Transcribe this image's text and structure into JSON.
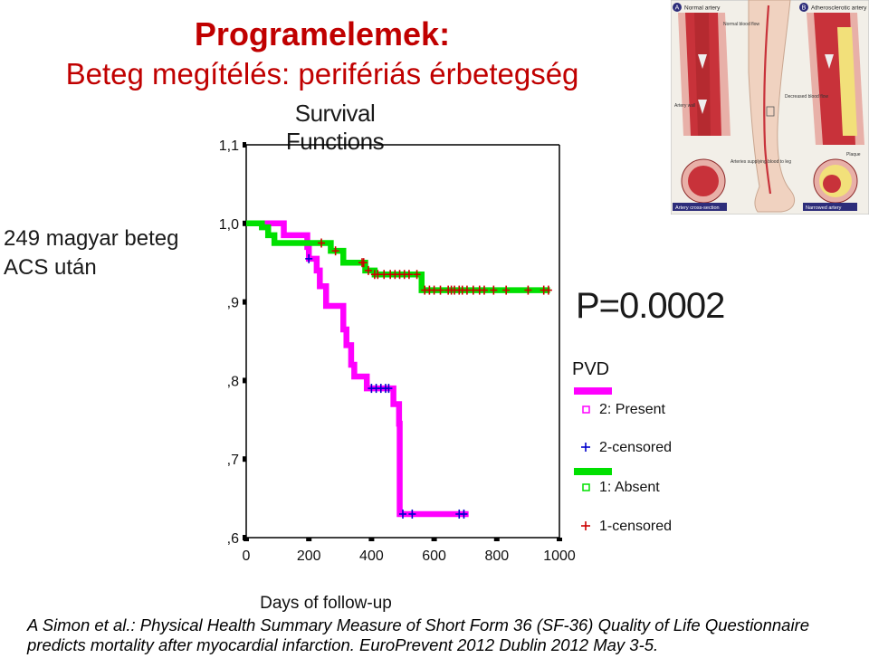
{
  "slide": {
    "title_line1": "Programelemek:",
    "title_line2": "Beteg megítélés: perifériás érbetegség",
    "side_note": [
      "249 magyar beteg",
      "ACS után"
    ],
    "p_value": "P=0.0002",
    "citation": [
      "A Simon et al.: Physical Health Summary Measure of Short Form 36 (SF-36) Quality of Life Questionnaire",
      "predicts mortality after myocardial infarction. EuroPrevent 2012 Dublin 2012 May 3-5."
    ],
    "colors": {
      "title": "#c00000",
      "present": "#ff00ff",
      "absent": "#00e000",
      "censored_present": "#0000cc",
      "censored_absent": "#cc0000"
    }
  },
  "illustration": {
    "panel_a_label": "A",
    "panel_a_title": "Normal artery",
    "panel_b_label": "B",
    "panel_b_title": "Atherosclerotic artery",
    "labels": {
      "normal_flow": "Normal blood flow",
      "artery_wall": "Artery wall",
      "arteries_supplying": "Arteries supplying blood to leg",
      "decreased_flow": "Decreased blood flow",
      "plaque": "Plaque",
      "artery_cross": "Artery cross-section",
      "narrowed": "Narrowed artery"
    }
  },
  "chart_data": {
    "type": "line",
    "title": "Survival Functions",
    "xlabel": "Days of follow-up",
    "ylabel": "",
    "xlim": [
      0,
      1000
    ],
    "ylim": [
      0.6,
      1.1
    ],
    "x_ticks": [
      "0",
      "200",
      "400",
      "600",
      "800",
      "1000"
    ],
    "x_tick_values": [
      0,
      200,
      400,
      600,
      800,
      1000
    ],
    "y_ticks": [
      "1,1",
      "1,0",
      ",9",
      ",8",
      ",7",
      ",6"
    ],
    "y_tick_values": [
      1.1,
      1.0,
      0.9,
      0.8,
      0.7,
      0.6
    ],
    "legend_title": "PVD",
    "legend_position": "right",
    "legend": [
      "2: Present",
      "2-censored",
      "1: Absent",
      "1-censored"
    ],
    "series": [
      {
        "name": "2: Present",
        "steps": [
          [
            60,
            1.0
          ],
          [
            120,
            0.985
          ],
          [
            195,
            0.97
          ],
          [
            200,
            0.955
          ],
          [
            225,
            0.94
          ],
          [
            235,
            0.92
          ],
          [
            255,
            0.895
          ],
          [
            310,
            0.865
          ],
          [
            320,
            0.845
          ],
          [
            335,
            0.82
          ],
          [
            345,
            0.805
          ],
          [
            385,
            0.79
          ],
          [
            470,
            0.77
          ],
          [
            488,
            0.745
          ],
          [
            490,
            0.63
          ]
        ],
        "end_x": 710,
        "censored_x": [
          200,
          400,
          415,
          430,
          445,
          455,
          500,
          530,
          680,
          695
        ]
      },
      {
        "name": "1: Absent",
        "steps": [
          [
            50,
            0.995
          ],
          [
            70,
            0.985
          ],
          [
            90,
            0.975
          ],
          [
            270,
            0.965
          ],
          [
            310,
            0.95
          ],
          [
            380,
            0.94
          ],
          [
            410,
            0.935
          ],
          [
            560,
            0.915
          ]
        ],
        "end_x": 970,
        "censored_x": [
          240,
          285,
          370,
          375,
          390,
          410,
          420,
          440,
          460,
          475,
          490,
          505,
          520,
          545,
          570,
          585,
          600,
          620,
          645,
          655,
          665,
          680,
          690,
          705,
          725,
          745,
          760,
          790,
          830,
          900,
          950,
          965
        ]
      }
    ]
  }
}
